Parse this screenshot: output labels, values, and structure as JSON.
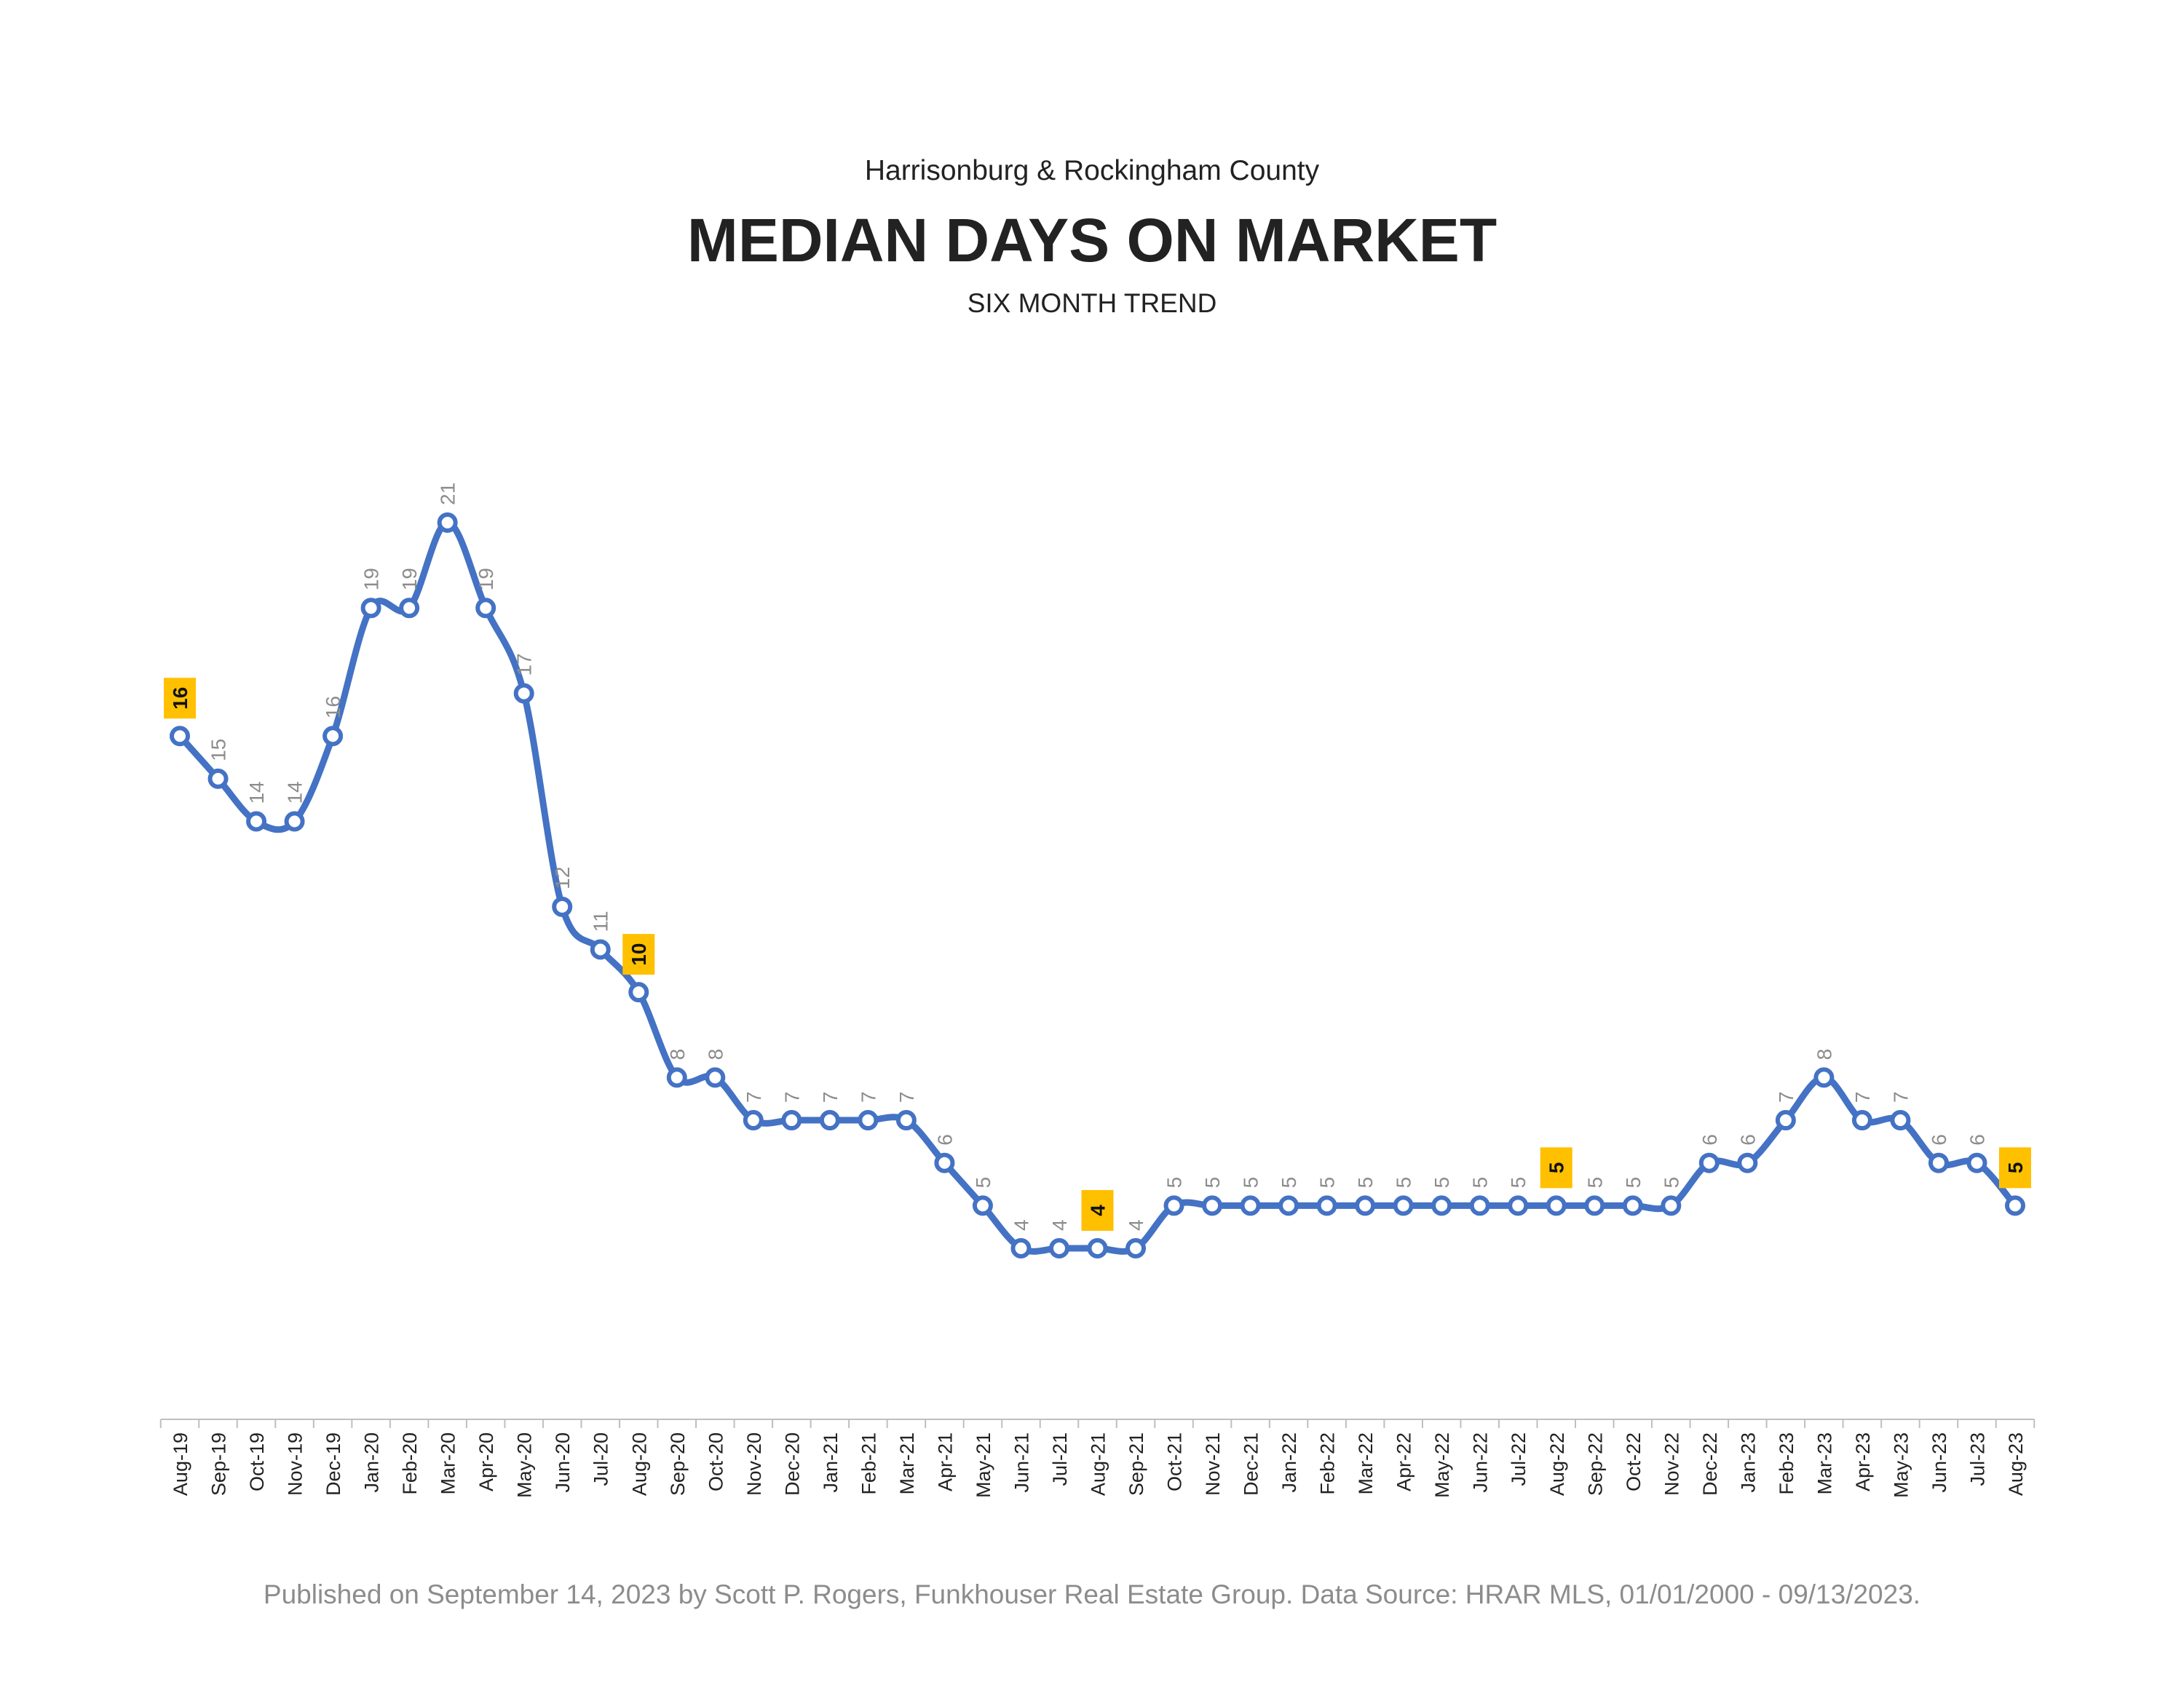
{
  "header": {
    "subtitle_top": "Harrisonburg & Rockingham County",
    "title": "MEDIAN DAYS ON MARKET",
    "subtitle_bottom": "SIX MONTH TREND"
  },
  "footer": {
    "text": "Published on September 14, 2023 by Scott P. Rogers, Funkhouser Real Estate Group. Data Source: HRAR MLS, 01/01/2000 - 09/13/2023."
  },
  "colors": {
    "line": "#4472C4",
    "highlight": "#FFC000",
    "label": "#8c8c8c",
    "axis": "#bfbfbf",
    "tick_label": "#222222"
  },
  "chart_data": {
    "type": "line",
    "title": "MEDIAN DAYS ON MARKET",
    "subtitle": "SIX MONTH TREND",
    "xlabel": "",
    "ylabel": "",
    "grid": false,
    "smooth": true,
    "ylim": [
      0,
      24
    ],
    "categories": [
      "Aug-19",
      "Sep-19",
      "Oct-19",
      "Nov-19",
      "Dec-19",
      "Jan-20",
      "Feb-20",
      "Mar-20",
      "Apr-20",
      "May-20",
      "Jun-20",
      "Jul-20",
      "Aug-20",
      "Sep-20",
      "Oct-20",
      "Nov-20",
      "Dec-20",
      "Jan-21",
      "Feb-21",
      "Mar-21",
      "Apr-21",
      "May-21",
      "Jun-21",
      "Jul-21",
      "Aug-21",
      "Sep-21",
      "Oct-21",
      "Nov-21",
      "Dec-21",
      "Jan-22",
      "Feb-22",
      "Mar-22",
      "Apr-22",
      "May-22",
      "Jun-22",
      "Jul-22",
      "Aug-22",
      "Sep-22",
      "Oct-22",
      "Nov-22",
      "Dec-22",
      "Jan-23",
      "Feb-23",
      "Mar-23",
      "Apr-23",
      "May-23",
      "Jun-23",
      "Jul-23",
      "Aug-23"
    ],
    "series": [
      {
        "name": "",
        "values": [
          16,
          15,
          14,
          14,
          16,
          19,
          19,
          21,
          19,
          17,
          12,
          11,
          10,
          8,
          8,
          7,
          7,
          7,
          7,
          7,
          6,
          5,
          4,
          4,
          4,
          4,
          5,
          5,
          5,
          5,
          5,
          5,
          5,
          5,
          5,
          5,
          5,
          5,
          5,
          5,
          6,
          6,
          7,
          8,
          7,
          7,
          6,
          6,
          5
        ]
      }
    ],
    "highlighted_categories": [
      "Aug-19",
      "Aug-20",
      "Aug-21",
      "Aug-22",
      "Aug-23"
    ]
  }
}
